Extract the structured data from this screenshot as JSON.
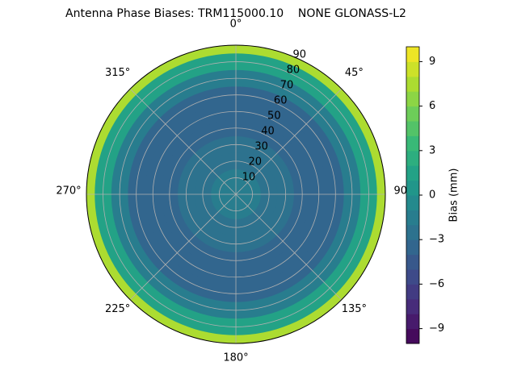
{
  "chart_data": {
    "type": "polar-contour",
    "title": "Antenna Phase Biases: TRM115000.10    NONE GLONASS-L2",
    "zenith": [
      0,
      10,
      20,
      30,
      40,
      50,
      60,
      70,
      80,
      90
    ],
    "values": [
      -2,
      -2,
      -2.5,
      -3,
      -3.5,
      -4,
      -3.5,
      -2,
      1,
      7
    ],
    "rlim": [
      0,
      90
    ],
    "rticks": [
      10,
      20,
      30,
      40,
      50,
      60,
      70,
      80,
      90
    ],
    "thetaticks": [
      {
        "value": 0,
        "label": "0°"
      },
      {
        "value": 45,
        "label": "45°"
      },
      {
        "value": 90,
        "label": "90°"
      },
      {
        "value": 135,
        "label": "135°"
      },
      {
        "value": 180,
        "label": "180°"
      },
      {
        "value": 225,
        "label": "225°"
      },
      {
        "value": 270,
        "label": "270°"
      },
      {
        "value": 315,
        "label": "315°"
      }
    ],
    "colormap": "viridis",
    "clim": [
      -10,
      10
    ],
    "cticks": [
      {
        "value": -9,
        "label": "−9"
      },
      {
        "value": -6,
        "label": "−6"
      },
      {
        "value": -3,
        "label": "−3"
      },
      0,
      3,
      6,
      9
    ],
    "colorbar_label": "Bias (mm)",
    "grid": true
  }
}
